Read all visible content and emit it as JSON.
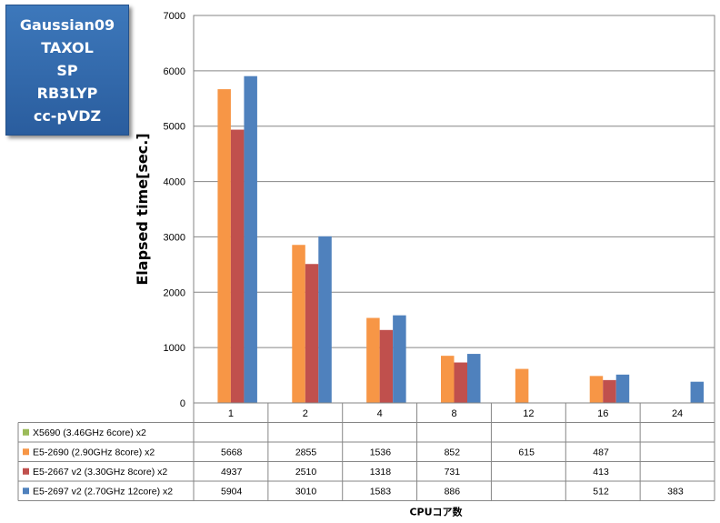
{
  "title_box": {
    "lines": [
      "Gaussian09",
      "TAXOL",
      "SP",
      "RB3LYP",
      "cc-pVDZ"
    ]
  },
  "chart_data": {
    "type": "bar",
    "categories": [
      "1",
      "2",
      "4",
      "8",
      "12",
      "16",
      "24"
    ],
    "series": [
      {
        "name": "X5690 (3.46GHz 6core) x2",
        "color": "#9bbb59",
        "values": [
          null,
          null,
          null,
          null,
          null,
          null,
          null
        ]
      },
      {
        "name": "E5-2690 (2.90GHz 8core) x2",
        "color": "#f79646",
        "values": [
          5668,
          2855,
          1536,
          852,
          615,
          487,
          null
        ]
      },
      {
        "name": "E5-2667 v2 (3.30GHz 8core) x2",
        "color": "#c0504d",
        "values": [
          4937,
          2510,
          1318,
          731,
          null,
          413,
          null
        ]
      },
      {
        "name": "E5-2697 v2 (2.70GHz 12core) x2",
        "color": "#4f81bd",
        "values": [
          5904,
          3010,
          1583,
          886,
          null,
          512,
          383
        ]
      }
    ],
    "ylabel": "Elapsed time[sec.]",
    "xlabel": "CPUコア数",
    "ylim": [
      0,
      7000
    ],
    "yticks": [
      0,
      1000,
      2000,
      3000,
      4000,
      5000,
      6000,
      7000
    ],
    "grid": true,
    "legend": "data-table"
  }
}
